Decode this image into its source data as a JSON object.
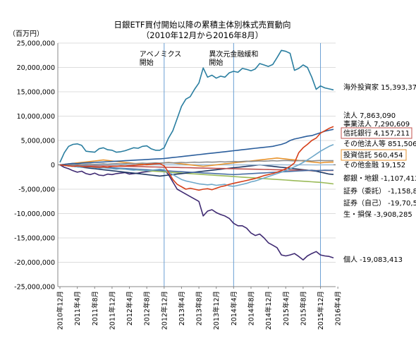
{
  "chart_data": {
    "type": "line",
    "title": "日銀ETF買付開始以降の累積主体別株式売買動向",
    "subtitle": "（2010年12月から2016年8月）",
    "ylabel": "（百万円）",
    "ylim": [
      -25000000,
      25000000
    ],
    "y_ticks": [
      25000000,
      20000000,
      15000000,
      10000000,
      5000000,
      0,
      -5000000,
      -10000000,
      -15000000,
      -20000000,
      -25000000
    ],
    "y_tick_labels": [
      "25,000,000",
      "20,000,000",
      "15,000,000",
      "10,000,000",
      "5,000,000",
      "0",
      "-5,000,000",
      "-10,000,000",
      "-15,000,000",
      "-20,000,000",
      "-25,000,000"
    ],
    "x_tick_labels": [
      "2010年12月",
      "2011年4月",
      "2011年8月",
      "2011年12月",
      "2012年4月",
      "2012年8月",
      "2012年12月",
      "2013年4月",
      "2013年8月",
      "2013年12月",
      "2014年4月",
      "2014年8月",
      "2014年12月",
      "2015年4月",
      "2015年8月",
      "2015年12月",
      "2016年4月"
    ],
    "grid": "horizontal",
    "legend": "labels at right end of each line",
    "annotations": [
      {
        "label": "アベノミクス\n開始",
        "x_index": 24
      },
      {
        "label": "異次元金融緩和\n開始",
        "x_index": 40
      },
      {
        "label": "",
        "x_index": 60
      }
    ],
    "series": [
      {
        "name": "海外投資家",
        "final_label": "15,393,376",
        "color": "#2a7ea0",
        "boxed": false,
        "values": [
          500000,
          2500000,
          3800000,
          4200000,
          4300000,
          4000000,
          2800000,
          2700000,
          2600000,
          3300000,
          3500000,
          3100000,
          3000000,
          2600000,
          2700000,
          2900000,
          3200000,
          3500000,
          3400000,
          3800000,
          3900000,
          3300000,
          3000000,
          3000000,
          3500000,
          5500000,
          7000000,
          9500000,
          12000000,
          13500000,
          14000000,
          15500000,
          16800000,
          19900000,
          18000000,
          18400000,
          17800000,
          18200000,
          18000000,
          18900000,
          19200000,
          19000000,
          19800000,
          19600000,
          19300000,
          19700000,
          20800000,
          20500000,
          20200000,
          20600000,
          22000000,
          23500000,
          23300000,
          22900000,
          19400000,
          19800000,
          20500000,
          20000000,
          18000000,
          15500000,
          16200000,
          15800000,
          15600000,
          15393376
        ]
      },
      {
        "name": "法人",
        "final_label": "7,863,090",
        "color": "#d6401a",
        "boxed": false,
        "values": [
          0,
          -100000,
          -200000,
          -300000,
          -200000,
          -300000,
          -400000,
          -350000,
          -450000,
          -500000,
          -400000,
          -500000,
          -300000,
          -300000,
          -200000,
          -250000,
          -150000,
          -100000,
          -50000,
          0,
          100000,
          150000,
          200000,
          250000,
          -200000,
          -1500000,
          -3000000,
          -4000000,
          -4500000,
          -5000000,
          -4800000,
          -5000000,
          -5200000,
          -5000000,
          -4900000,
          -5100000,
          -4800000,
          -4500000,
          -4300000,
          -4000000,
          -3800000,
          -3600000,
          -3400000,
          -3200000,
          -3000000,
          -2800000,
          -2500000,
          -2200000,
          -2000000,
          -1800000,
          -1500000,
          -1200000,
          -800000,
          -300000,
          400000,
          2500000,
          3500000,
          4200000,
          5000000,
          5500000,
          6500000,
          7000000,
          7500000,
          7863090
        ]
      },
      {
        "name": "事業法人",
        "final_label": "7,290,609",
        "color": "#2b5e9c",
        "boxed": false,
        "values": [
          0,
          100000,
          200000,
          300000,
          250000,
          350000,
          400000,
          450000,
          500000,
          550000,
          600000,
          650000,
          700000,
          750000,
          800000,
          850000,
          900000,
          950000,
          1000000,
          1050000,
          1100000,
          1150000,
          1200000,
          1250000,
          1300000,
          1400000,
          1500000,
          1600000,
          1700000,
          1800000,
          1900000,
          2000000,
          2100000,
          2200000,
          2300000,
          2400000,
          2500000,
          2600000,
          2700000,
          2800000,
          2900000,
          3000000,
          3100000,
          3200000,
          3300000,
          3400000,
          3500000,
          3600000,
          3700000,
          3800000,
          4000000,
          4200000,
          4500000,
          5000000,
          5300000,
          5500000,
          5700000,
          5900000,
          6000000,
          6300000,
          6600000,
          6900000,
          7100000,
          7290609
        ]
      },
      {
        "name": "信託銀行",
        "final_label": "4,157,211",
        "color": "#6fa8c9",
        "boxed": true,
        "values": [
          0,
          -100000,
          -200000,
          -300000,
          -400000,
          -500000,
          -400000,
          -500000,
          -600000,
          -700000,
          -600000,
          -700000,
          -800000,
          -900000,
          -800000,
          -900000,
          -1000000,
          -1100000,
          -1000000,
          -1100000,
          -1200000,
          -1100000,
          -1000000,
          -900000,
          -1000000,
          -1500000,
          -2000000,
          -2500000,
          -3000000,
          -3300000,
          -3500000,
          -3700000,
          -3900000,
          -4000000,
          -4100000,
          -4000000,
          -4200000,
          -4100000,
          -4000000,
          -4300000,
          -4400000,
          -4200000,
          -4000000,
          -3800000,
          -3500000,
          -3300000,
          -3000000,
          -2700000,
          -2400000,
          -2100000,
          -1800000,
          -1500000,
          -1200000,
          -800000,
          -400000,
          0,
          500000,
          1000000,
          1600000,
          2200000,
          2800000,
          3300000,
          3800000,
          4157211
        ]
      },
      {
        "name": "その他法人等",
        "final_label": "851,506",
        "color": "#8c8c8c",
        "boxed": false,
        "values": [
          0,
          -50000,
          0,
          50000,
          100000,
          50000,
          100000,
          150000,
          100000,
          150000,
          200000,
          150000,
          200000,
          250000,
          200000,
          250000,
          300000,
          250000,
          300000,
          350000,
          300000,
          350000,
          400000,
          350000,
          400000,
          450000,
          400000,
          450000,
          500000,
          450000,
          500000,
          550000,
          500000,
          550000,
          600000,
          550000,
          600000,
          650000,
          600000,
          650000,
          700000,
          650000,
          700000,
          750000,
          700000,
          750000,
          800000,
          750000,
          800000,
          850000,
          800000,
          850000,
          900000,
          850000,
          800000,
          850000,
          900000,
          850000,
          800000,
          850000,
          900000,
          850000,
          870000,
          851506
        ]
      },
      {
        "name": "投資信託",
        "final_label": "560,454",
        "color": "#e8932c",
        "boxed": true,
        "values": [
          0,
          100000,
          200000,
          300000,
          400000,
          500000,
          600000,
          700000,
          800000,
          900000,
          1000000,
          900000,
          800000,
          700000,
          600000,
          500000,
          400000,
          300000,
          200000,
          100000,
          0,
          100000,
          200000,
          300000,
          400000,
          500000,
          400000,
          300000,
          200000,
          100000,
          0,
          -100000,
          -200000,
          -300000,
          -200000,
          -100000,
          0,
          100000,
          200000,
          300000,
          400000,
          500000,
          600000,
          700000,
          800000,
          900000,
          1000000,
          1100000,
          1200000,
          1300000,
          1400000,
          1300000,
          1200000,
          1100000,
          1000000,
          900000,
          800000,
          700000,
          600000,
          500000,
          400000,
          500000,
          550000,
          560454
        ]
      },
      {
        "name": "その他金融",
        "final_label": "19,152",
        "color": "#a3c0d9",
        "boxed": false,
        "values": [
          0,
          10000,
          20000,
          10000,
          0,
          -10000,
          0,
          10000,
          20000,
          10000,
          0,
          -10000,
          0,
          10000,
          20000,
          10000,
          0,
          -10000,
          0,
          10000,
          20000,
          10000,
          0,
          -10000,
          0,
          10000,
          20000,
          10000,
          0,
          -10000,
          0,
          10000,
          20000,
          10000,
          0,
          -10000,
          0,
          10000,
          20000,
          10000,
          0,
          -10000,
          0,
          10000,
          20000,
          10000,
          0,
          -10000,
          0,
          10000,
          20000,
          10000,
          0,
          -10000,
          0,
          10000,
          20000,
          10000,
          0,
          -10000,
          0,
          10000,
          15000,
          19152
        ]
      },
      {
        "name": "都銀・地銀",
        "final_label": "-1,107,412",
        "color": "#4a6fa5",
        "boxed": false,
        "values": [
          0,
          -50000,
          -100000,
          -150000,
          -200000,
          -250000,
          -300000,
          -350000,
          -400000,
          -450000,
          -500000,
          -550000,
          -600000,
          -650000,
          -700000,
          -750000,
          -800000,
          -850000,
          -900000,
          -950000,
          -1000000,
          -1050000,
          -1100000,
          -1150000,
          -1200000,
          -1250000,
          -1300000,
          -1350000,
          -1400000,
          -1450000,
          -1500000,
          -1550000,
          -1600000,
          -1650000,
          -1700000,
          -1750000,
          -1800000,
          -1850000,
          -1900000,
          -1950000,
          -2000000,
          -1950000,
          -1900000,
          -1850000,
          -1800000,
          -1750000,
          -1700000,
          -1650000,
          -1600000,
          -1550000,
          -1500000,
          -1450000,
          -1400000,
          -1350000,
          -1300000,
          -1250000,
          -1200000,
          -1150000,
          -1100000,
          -1200000,
          -1150000,
          -1100000,
          -1120000,
          -1107412
        ]
      },
      {
        "name": "証券（委託）",
        "final_label": "-1,158,808",
        "color": "#c0504d",
        "boxed": false,
        "values": [
          0,
          -20000,
          -40000,
          -60000,
          -80000,
          -100000,
          -120000,
          -140000,
          -160000,
          -180000,
          -200000,
          -220000,
          -240000,
          -260000,
          -280000,
          -300000,
          -320000,
          -340000,
          -360000,
          -380000,
          -400000,
          -420000,
          -440000,
          -460000,
          -480000,
          -500000,
          -520000,
          -540000,
          -560000,
          -580000,
          -600000,
          -620000,
          -640000,
          -660000,
          -680000,
          -700000,
          -720000,
          -740000,
          -760000,
          -780000,
          -800000,
          -820000,
          -840000,
          -860000,
          -880000,
          -900000,
          -920000,
          -940000,
          -960000,
          -980000,
          -1000000,
          -1020000,
          -1040000,
          -1060000,
          -1080000,
          -1100000,
          -1120000,
          -1140000,
          -1150000,
          -1155000,
          -1160000,
          -1158000,
          -1159000,
          -1158808
        ]
      },
      {
        "name": "証券（自己）",
        "final_label": "-19,70,526",
        "color": "#1f3864",
        "boxed": false,
        "values": [
          0,
          -100000,
          -200000,
          -300000,
          -400000,
          -500000,
          -600000,
          -700000,
          -800000,
          -900000,
          -1000000,
          -1100000,
          -1200000,
          -1300000,
          -1400000,
          -1500000,
          -1600000,
          -1700000,
          -1800000,
          -1900000,
          -2000000,
          -2100000,
          -2200000,
          -2300000,
          -2200000,
          -2100000,
          -2000000,
          -1900000,
          -1800000,
          -1700000,
          -1600000,
          -1500000,
          -1400000,
          -1300000,
          -1200000,
          -1100000,
          -1000000,
          -900000,
          -800000,
          -700000,
          -600000,
          -500000,
          -400000,
          -300000,
          -200000,
          -100000,
          0,
          -100000,
          -200000,
          -300000,
          -400000,
          -500000,
          -600000,
          -700000,
          -800000,
          -900000,
          -1000000,
          -1100000,
          -1200000,
          -1300000,
          -1500000,
          -1700000,
          -1900000,
          -1970526
        ]
      },
      {
        "name": "生・損保",
        "final_label": "-3,908,285",
        "color": "#9bbb59",
        "boxed": false,
        "values": [
          0,
          -60000,
          -120000,
          -180000,
          -240000,
          -300000,
          -360000,
          -420000,
          -480000,
          -540000,
          -600000,
          -660000,
          -720000,
          -780000,
          -840000,
          -900000,
          -960000,
          -1020000,
          -1080000,
          -1140000,
          -1200000,
          -1260000,
          -1320000,
          -1380000,
          -1440000,
          -1500000,
          -1560000,
          -1620000,
          -1680000,
          -1740000,
          -1800000,
          -1860000,
          -1920000,
          -1980000,
          -2040000,
          -2100000,
          -2160000,
          -2220000,
          -2280000,
          -2340000,
          -2400000,
          -2460000,
          -2520000,
          -2580000,
          -2640000,
          -2700000,
          -2760000,
          -2820000,
          -2880000,
          -2940000,
          -3000000,
          -3060000,
          -3120000,
          -3180000,
          -3240000,
          -3300000,
          -3360000,
          -3420000,
          -3480000,
          -3540000,
          -3600000,
          -3700000,
          -3800000,
          -3908285
        ]
      },
      {
        "name": "個人",
        "final_label": "-19,083,413",
        "color": "#3f2a72",
        "boxed": false,
        "values": [
          0,
          -500000,
          -800000,
          -1200000,
          -1500000,
          -1300000,
          -1800000,
          -2000000,
          -1700000,
          -2100000,
          -2200000,
          -1900000,
          -2000000,
          -1800000,
          -1700000,
          -1600000,
          -1900000,
          -1800000,
          -1700000,
          -1500000,
          -1400000,
          -1300000,
          -1200000,
          -1000000,
          -1000000,
          -2000000,
          -3500000,
          -5000000,
          -5500000,
          -6000000,
          -6500000,
          -7000000,
          -7500000,
          -10500000,
          -9500000,
          -9200000,
          -9800000,
          -10200000,
          -10500000,
          -11000000,
          -12000000,
          -12500000,
          -12500000,
          -13000000,
          -14000000,
          -14500000,
          -14200000,
          -15000000,
          -16000000,
          -16500000,
          -17000000,
          -18500000,
          -18700000,
          -18500000,
          -18200000,
          -18800000,
          -19500000,
          -18700000,
          -18200000,
          -17800000,
          -18500000,
          -18700000,
          -18800000,
          -19083413
        ]
      }
    ]
  }
}
